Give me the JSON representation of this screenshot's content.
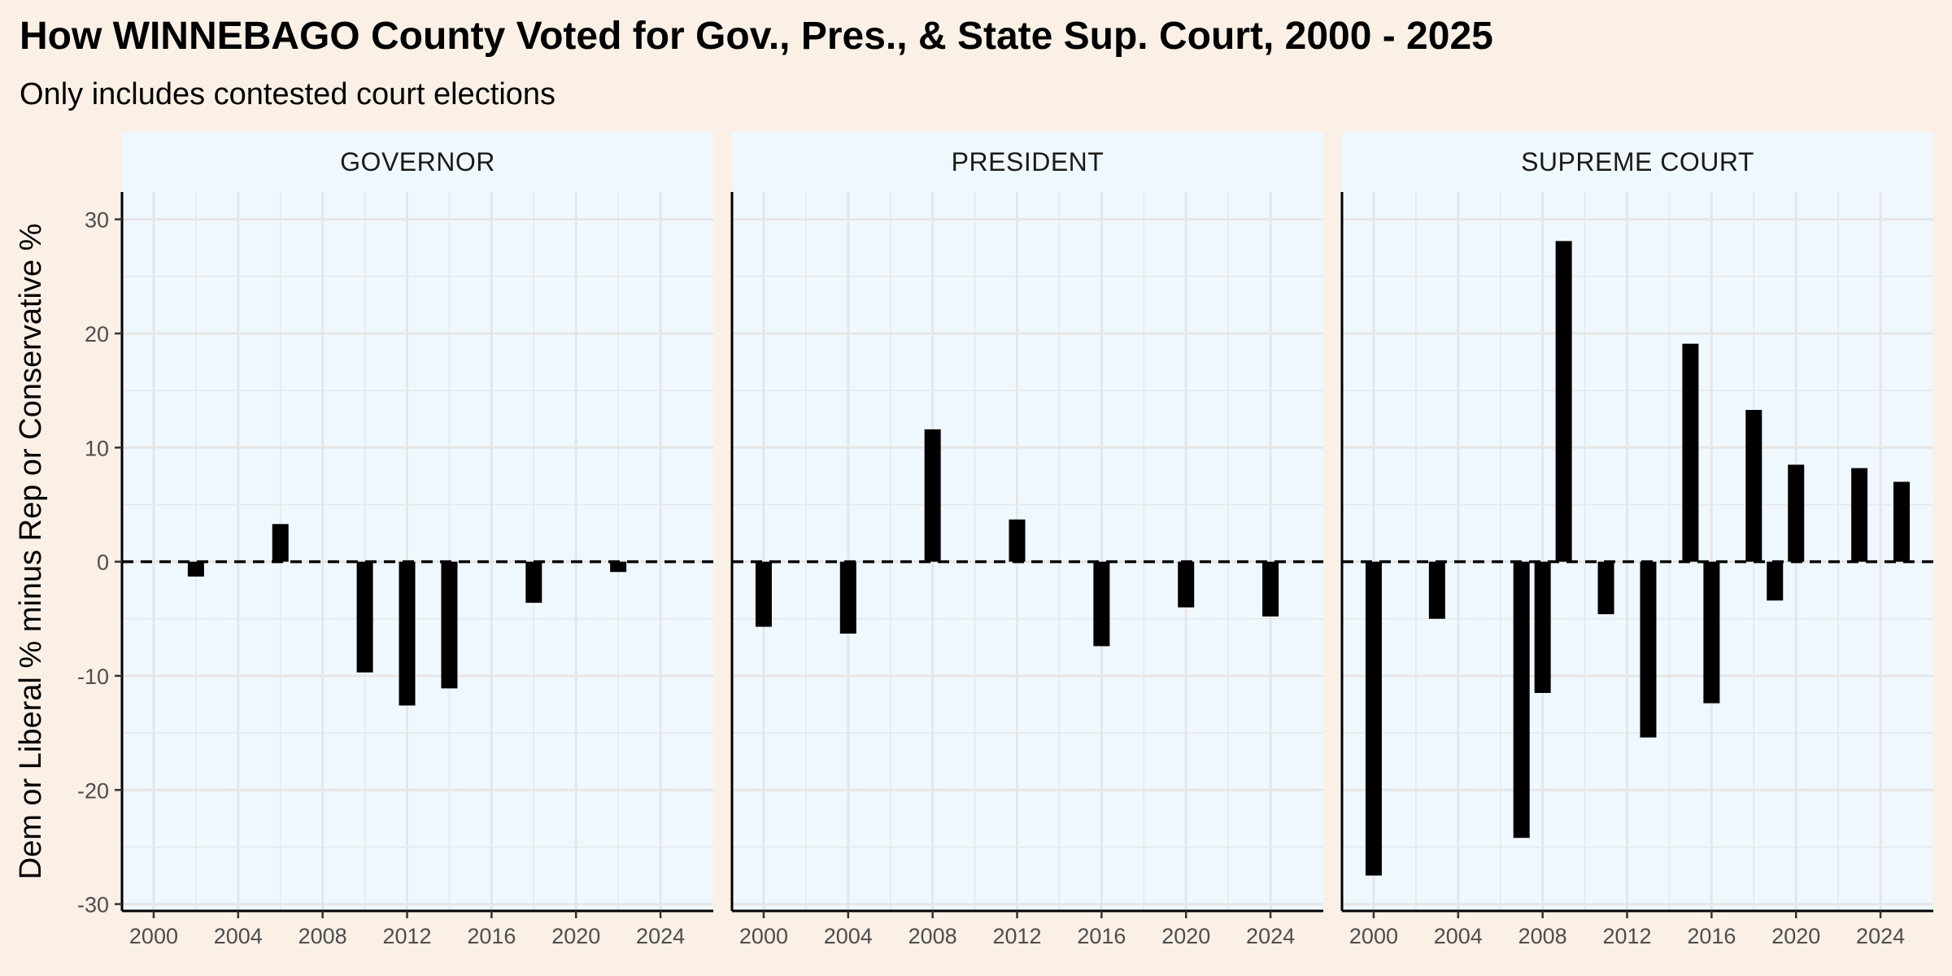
{
  "title": "How WINNEBAGO County Voted for Gov., Pres., & State Sup. Court, 2000 - 2025",
  "subtitle": "Only includes contested court elections",
  "colors": {
    "page_background": "#FAF0E6",
    "panel_background": "#F0F8FF",
    "bar": "#000000",
    "grid": "#E6E6E6"
  },
  "chart_data": {
    "type": "bar",
    "faceted": true,
    "ylabel": "Dem or Liberal % minus Rep or Conservative %",
    "ylim": [
      -30,
      30
    ],
    "yticks": [
      -30,
      -20,
      -10,
      0,
      10,
      20,
      30
    ],
    "xlim": [
      1998.5,
      2026.5
    ],
    "xticks": [
      2000,
      2004,
      2008,
      2012,
      2016,
      2020,
      2024
    ],
    "reference_line": {
      "y": 0,
      "style": "dashed"
    },
    "grid": true,
    "legend": "none",
    "panels": [
      {
        "label": "GOVERNOR",
        "points": [
          {
            "x": 2002,
            "y": -1.3
          },
          {
            "x": 2006,
            "y": 3.3
          },
          {
            "x": 2010,
            "y": -9.7
          },
          {
            "x": 2012,
            "y": -12.6
          },
          {
            "x": 2014,
            "y": -11.1
          },
          {
            "x": 2018,
            "y": -3.6
          },
          {
            "x": 2022,
            "y": -0.9
          }
        ]
      },
      {
        "label": "PRESIDENT",
        "points": [
          {
            "x": 2000,
            "y": -5.7
          },
          {
            "x": 2004,
            "y": -6.3
          },
          {
            "x": 2008,
            "y": 11.6
          },
          {
            "x": 2012,
            "y": 3.7
          },
          {
            "x": 2016,
            "y": -7.4
          },
          {
            "x": 2020,
            "y": -4.0
          },
          {
            "x": 2024,
            "y": -4.8
          }
        ]
      },
      {
        "label": "SUPREME COURT",
        "points": [
          {
            "x": 2000,
            "y": -27.5
          },
          {
            "x": 2003,
            "y": -5.0
          },
          {
            "x": 2007,
            "y": -24.2
          },
          {
            "x": 2008,
            "y": -11.5
          },
          {
            "x": 2009,
            "y": 28.1
          },
          {
            "x": 2011,
            "y": -4.6
          },
          {
            "x": 2013,
            "y": -15.4
          },
          {
            "x": 2015,
            "y": 19.1
          },
          {
            "x": 2016,
            "y": -12.4
          },
          {
            "x": 2018,
            "y": 13.3
          },
          {
            "x": 2019,
            "y": -3.4
          },
          {
            "x": 2020,
            "y": 8.5
          },
          {
            "x": 2023,
            "y": 8.2
          },
          {
            "x": 2025,
            "y": 7.0
          }
        ]
      }
    ]
  }
}
